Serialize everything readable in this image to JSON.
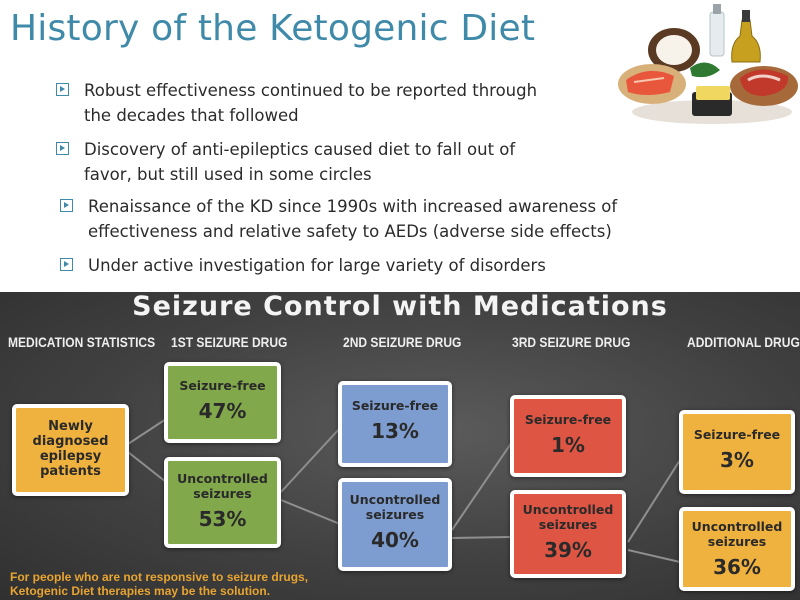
{
  "slide": {
    "title": "History of the Ketogenic Diet",
    "bullets": [
      {
        "line1": "Robust effectiveness continued to be reported through",
        "line2": "the decades that followed"
      },
      {
        "line1": "Discovery of anti-epileptics caused diet to fall out of",
        "line2": "favor, but still used in some circles"
      },
      {
        "line1": "Renaissance of the KD since 1990s with increased awareness of",
        "line2": "effectiveness and relative safety to AEDs (adverse side effects)"
      },
      {
        "line1": "Under active investigation for large variety of disorders"
      }
    ],
    "image": "food-icon"
  },
  "infographic": {
    "title": "Seizure Control with Medications",
    "columns": [
      "MEDICATION STATISTICS",
      "1ST SEIZURE DRUG",
      "2ND SEIZURE DRUG",
      "3RD SEIZURE DRUG",
      "ADDITIONAL DRUG"
    ],
    "start": {
      "line1": "Newly",
      "line2": "diagnosed",
      "line3": "epilepsy",
      "line4": "patients"
    },
    "stages": [
      {
        "free_label": "Seizure-free",
        "free_value": "47%",
        "unc_line1": "Uncontrolled",
        "unc_line2": "seizures",
        "unc_value": "53%"
      },
      {
        "free_label": "Seizure-free",
        "free_value": "13%",
        "unc_line1": "Uncontrolled",
        "unc_line2": "seizures",
        "unc_value": "40%"
      },
      {
        "free_label": "Seizure-free",
        "free_value": "1%",
        "unc_line1": "Uncontrolled",
        "unc_line2": "seizures",
        "unc_value": "39%"
      },
      {
        "free_label": "Seizure-free",
        "free_value": "3%",
        "unc_line1": "Uncontrolled",
        "unc_line2": "seizures",
        "unc_value": "36%"
      }
    ],
    "footnote_line1": "For people who are not responsive to seizure drugs,",
    "footnote_line2": "Ketogenic Diet therapies may be the solution.",
    "colors": {
      "start": "#f0b23e",
      "stage1": "#82a84c",
      "stage2": "#7d9ccf",
      "stage3": "#de5543",
      "stage4": "#f0b23e"
    }
  }
}
